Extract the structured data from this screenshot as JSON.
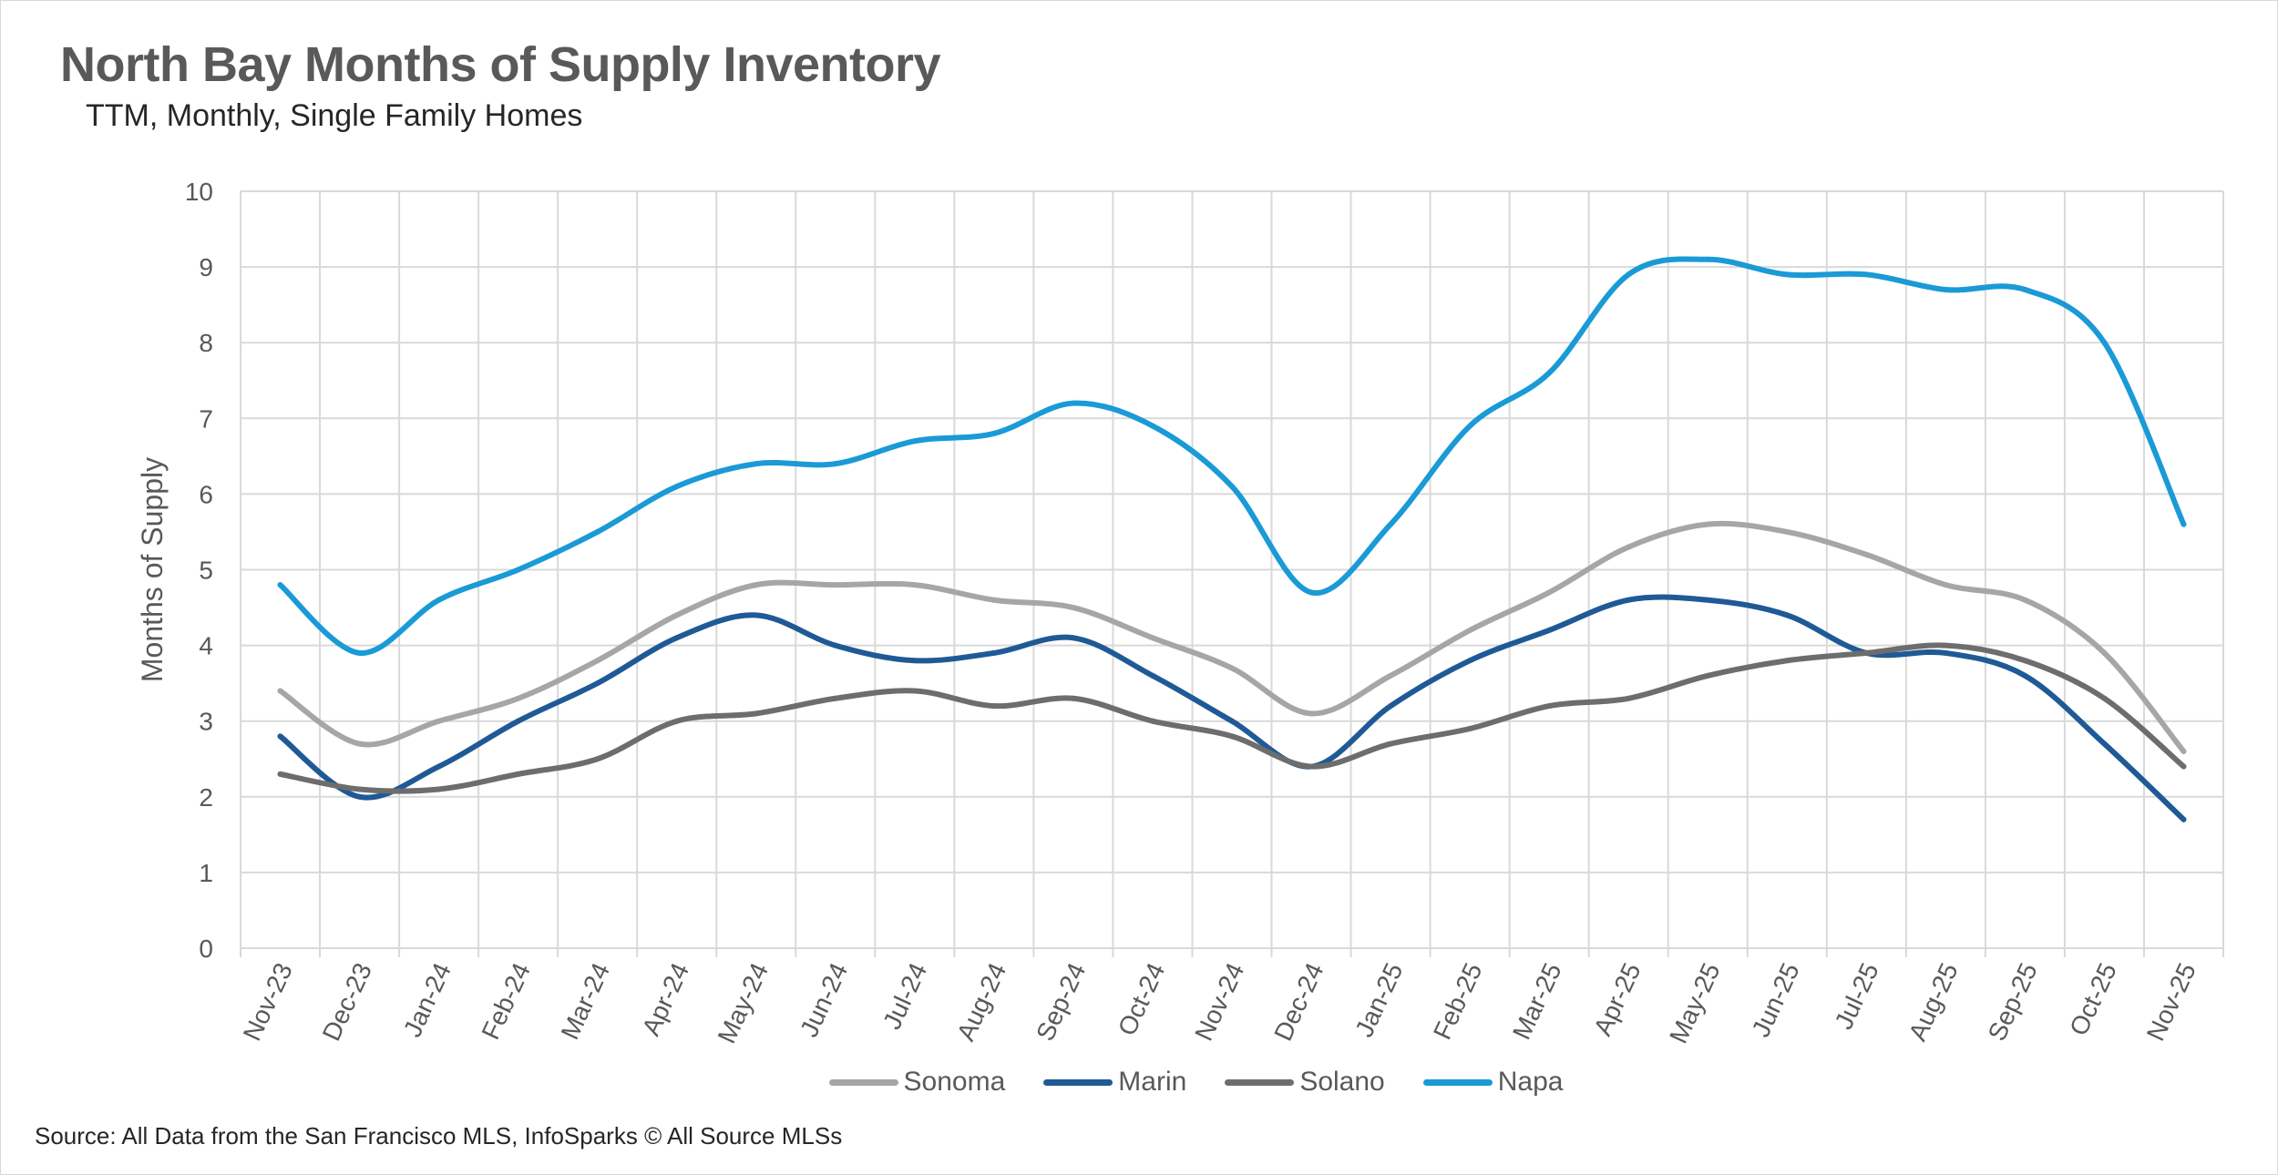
{
  "title": "North Bay Months of Supply Inventory",
  "subtitle": "TTM, Monthly, Single Family Homes",
  "source": "Source: All Data from the San Francisco MLS, InfoSparks © All Source MLSs",
  "chart_data": {
    "type": "line",
    "ylabel": "Months of Supply",
    "xlabel": "",
    "ylim": [
      0,
      10
    ],
    "yticks": [
      0,
      1,
      2,
      3,
      4,
      5,
      6,
      7,
      8,
      9,
      10
    ],
    "grid": true,
    "legend_position": "bottom",
    "categories": [
      "Nov-23",
      "Dec-23",
      "Jan-24",
      "Feb-24",
      "Mar-24",
      "Apr-24",
      "May-24",
      "Jun-24",
      "Jul-24",
      "Aug-24",
      "Sep-24",
      "Oct-24",
      "Nov-24",
      "Dec-24",
      "Jan-25",
      "Feb-25",
      "Mar-25",
      "Apr-25",
      "May-25",
      "Jun-25",
      "Jul-25",
      "Aug-25",
      "Sep-25",
      "Oct-25",
      "Nov-25"
    ],
    "series": [
      {
        "name": "Sonoma",
        "color": "#a6a6a6",
        "values": [
          3.4,
          2.7,
          3.0,
          3.3,
          3.8,
          4.4,
          4.8,
          4.8,
          4.8,
          4.6,
          4.5,
          4.1,
          3.7,
          3.1,
          3.6,
          4.2,
          4.7,
          5.3,
          5.6,
          5.5,
          5.2,
          4.8,
          4.6,
          3.9,
          2.6
        ]
      },
      {
        "name": "Marin",
        "color": "#1f5a96",
        "values": [
          2.8,
          2.0,
          2.4,
          3.0,
          3.5,
          4.1,
          4.4,
          4.0,
          3.8,
          3.9,
          4.1,
          3.6,
          3.0,
          2.4,
          3.2,
          3.8,
          4.2,
          4.6,
          4.6,
          4.4,
          3.9,
          3.9,
          3.6,
          2.7,
          1.7
        ]
      },
      {
        "name": "Solano",
        "color": "#6d6d6d",
        "values": [
          2.3,
          2.1,
          2.1,
          2.3,
          2.5,
          3.0,
          3.1,
          3.3,
          3.4,
          3.2,
          3.3,
          3.0,
          2.8,
          2.4,
          2.7,
          2.9,
          3.2,
          3.3,
          3.6,
          3.8,
          3.9,
          4.0,
          3.8,
          3.3,
          2.4
        ]
      },
      {
        "name": "Napa",
        "color": "#1a9ad6",
        "values": [
          4.8,
          3.9,
          4.6,
          5.0,
          5.5,
          6.1,
          6.4,
          6.4,
          6.7,
          6.8,
          7.2,
          6.9,
          6.1,
          4.7,
          5.6,
          6.9,
          7.6,
          8.9,
          9.1,
          8.9,
          8.9,
          8.7,
          8.7,
          8.0,
          5.6
        ]
      }
    ]
  }
}
